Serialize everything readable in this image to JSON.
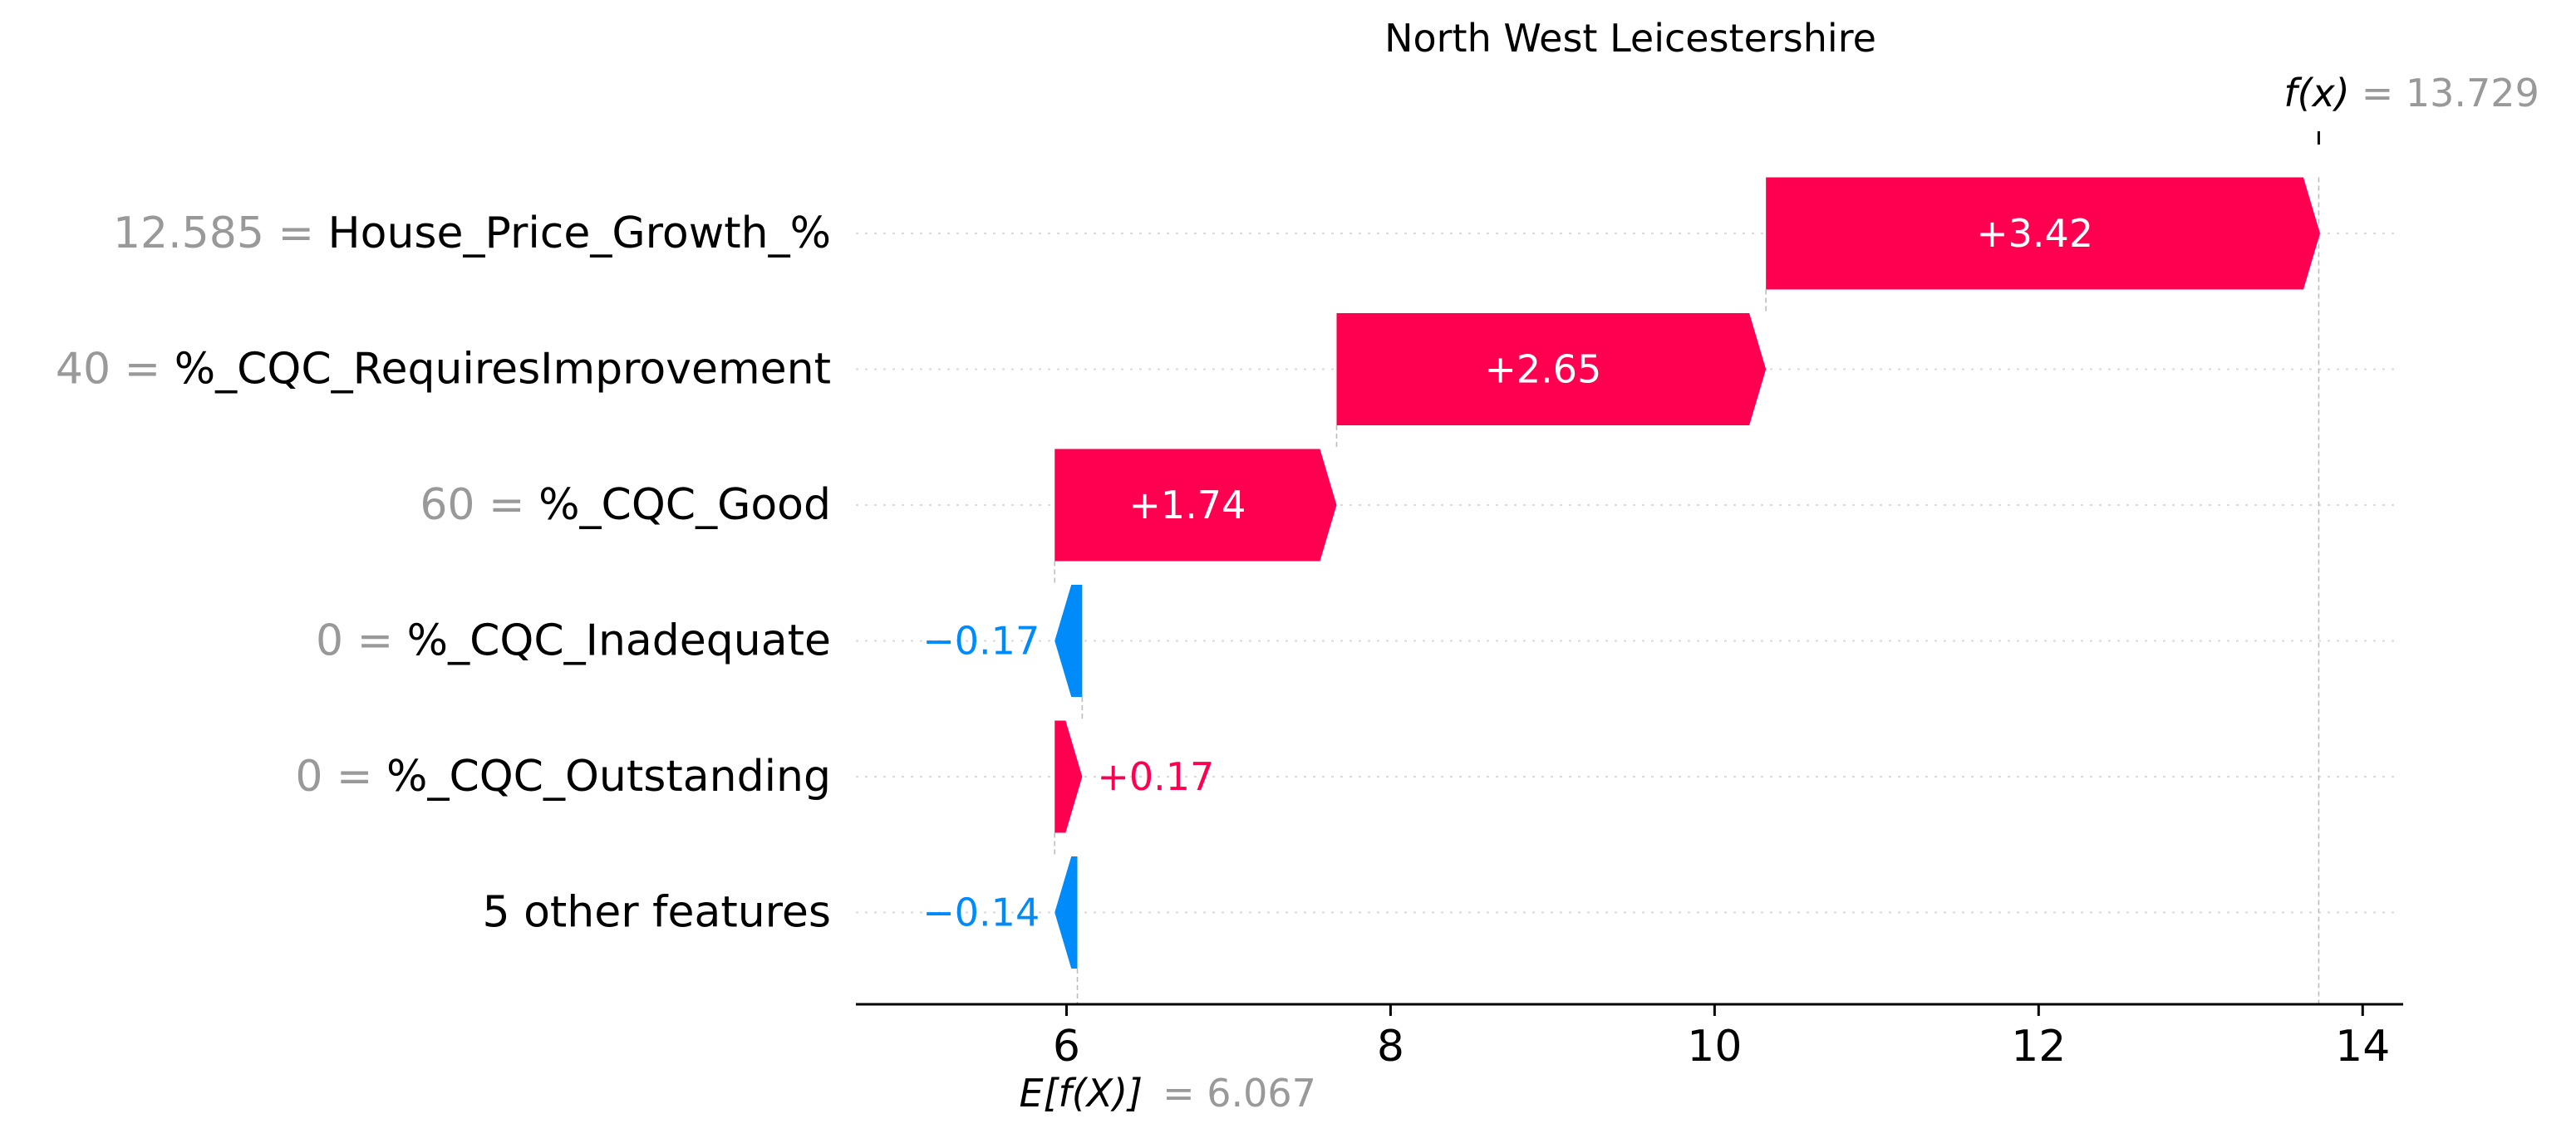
{
  "chart_data": {
    "type": "waterfall",
    "title": "North West Leicestershire",
    "base_value": 6.067,
    "base_label_math": "E[f(X)]",
    "base_label_value": "= 6.067",
    "output_value": 13.729,
    "output_label_math": "f(x)",
    "output_label_value": "= 13.729",
    "xlim": [
      4.7,
      14.25
    ],
    "xticks": [
      6,
      8,
      10,
      12,
      14
    ],
    "xtick_labels": [
      "6",
      "8",
      "10",
      "12",
      "14"
    ],
    "grid": "horizontal dotted",
    "features": [
      {
        "value": "12.585 =",
        "name": "House_Price_Growth_%",
        "contribution": 3.42,
        "label": "+3.42"
      },
      {
        "value": "40 =",
        "name": "%_CQC_RequiresImprovement",
        "contribution": 2.65,
        "label": "+2.65"
      },
      {
        "value": "60 =",
        "name": "%_CQC_Good",
        "contribution": 1.74,
        "label": "+1.74"
      },
      {
        "value": "0 =",
        "name": "%_CQC_Inadequate",
        "contribution": -0.17,
        "label": "−0.17"
      },
      {
        "value": "0 =",
        "name": "%_CQC_Outstanding",
        "contribution": 0.17,
        "label": "+0.17"
      },
      {
        "value": "",
        "name": "5 other features",
        "contribution": -0.14,
        "label": "−0.14"
      }
    ],
    "colors": {
      "positive": "#ff0051",
      "negative": "#008bfb",
      "axis": "#000000",
      "muted": "#999999"
    }
  }
}
